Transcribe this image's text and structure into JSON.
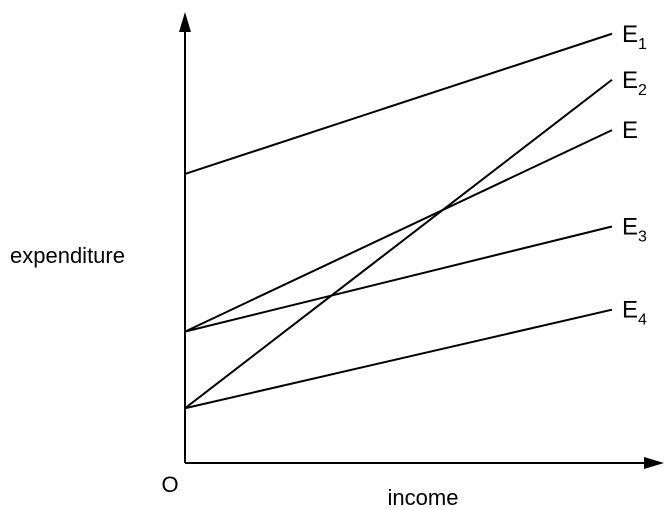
{
  "chart_data": {
    "type": "line",
    "title": "",
    "xlabel": "income",
    "ylabel": "expenditure",
    "origin_label": "O",
    "xlim": [
      0,
      100
    ],
    "ylim": [
      0,
      100
    ],
    "grid": false,
    "legend": "none",
    "line_color": "#000000",
    "series": [
      {
        "name": "E1",
        "base": "E",
        "sub": "1",
        "x": [
          0,
          100
        ],
        "y": [
          66,
          98
        ]
      },
      {
        "name": "E2",
        "base": "E",
        "sub": "2",
        "x": [
          0,
          100
        ],
        "y": [
          12.5,
          87.5
        ]
      },
      {
        "name": "E",
        "base": "E",
        "sub": "",
        "x": [
          0,
          100
        ],
        "y": [
          30,
          76
        ]
      },
      {
        "name": "E3",
        "base": "E",
        "sub": "3",
        "x": [
          0,
          100
        ],
        "y": [
          30,
          54
        ]
      },
      {
        "name": "E4",
        "base": "E",
        "sub": "4",
        "x": [
          0,
          100
        ],
        "y": [
          12.5,
          35
        ]
      }
    ]
  }
}
